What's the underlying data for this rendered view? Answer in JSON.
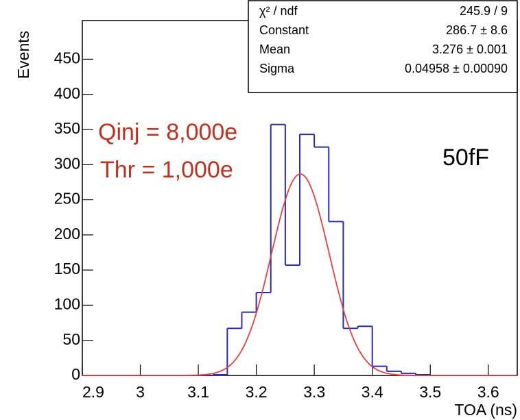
{
  "chart_data": {
    "type": "histogram",
    "x_label": "TOA (ns)",
    "y_label": "Events",
    "bins": [
      2.9,
      2.925,
      2.95,
      2.975,
      3.0,
      3.025,
      3.05,
      3.075,
      3.1,
      3.125,
      3.15,
      3.175,
      3.2,
      3.225,
      3.25,
      3.275,
      3.3,
      3.325,
      3.35,
      3.375,
      3.4,
      3.425,
      3.45,
      3.475,
      3.5,
      3.525,
      3.55,
      3.575,
      3.6,
      3.625,
      3.65
    ],
    "values": [
      0,
      0,
      0,
      0,
      0,
      0,
      0,
      0,
      0,
      1,
      67,
      90,
      118,
      357,
      157,
      343,
      325,
      219,
      67,
      70,
      13,
      6,
      3,
      1,
      0,
      0,
      0,
      0,
      0,
      0
    ],
    "color": "#2a2ab8",
    "fit": {
      "constant": 286.7,
      "mean": 3.276,
      "sigma": 0.04958,
      "color": "#e8403a"
    },
    "stats": [
      {
        "name": "χ² / ndf",
        "label": "245.9 / 9"
      },
      {
        "name": "Constant",
        "label": "286.7 ± 8.6"
      },
      {
        "name": "Mean",
        "label": "3.276 ± 0.001"
      },
      {
        "name": "Sigma",
        "label": "0.04958 ± 0.00090"
      }
    ],
    "annotations": [
      {
        "text": "Qinj = 8,000e",
        "color": "#c0321e"
      },
      {
        "text": "Thr = 1,000e",
        "color": "#c0321e"
      },
      {
        "text": "50fF",
        "color": "#000000"
      }
    ],
    "xlim": [
      2.9,
      3.65
    ],
    "ylim": [
      0,
      505
    ],
    "xticks": [
      2.9,
      3,
      3.1,
      3.2,
      3.3,
      3.4,
      3.5,
      3.6
    ],
    "yticks": [
      0,
      50,
      100,
      150,
      200,
      250,
      300,
      350,
      400,
      450
    ]
  }
}
